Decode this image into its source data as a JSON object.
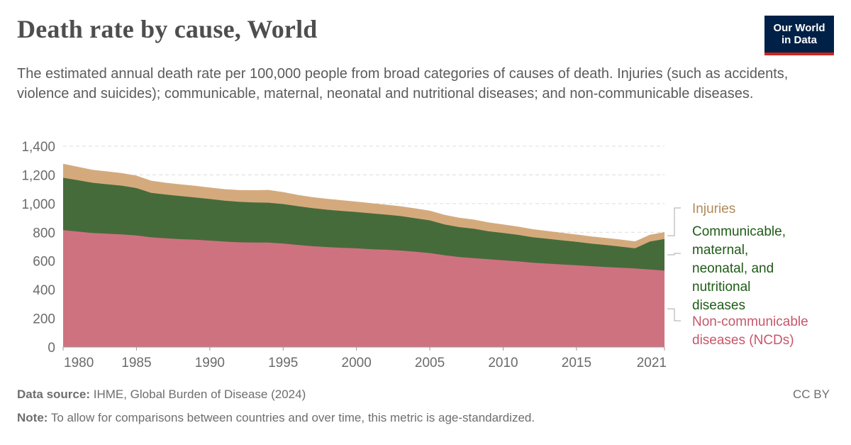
{
  "header": {
    "title": "Death rate by cause, World",
    "subtitle": "The estimated annual death rate per 100,000 people from broad categories of causes of death. Injuries (such as accidents, violence and suicides); communicable, maternal, neonatal and nutritional diseases; and non-communicable diseases.",
    "logo_line1": "Our World",
    "logo_line2": "in Data",
    "logo_color": "#002147",
    "logo_accent": "#ce261e"
  },
  "footer": {
    "source_label": "Data source:",
    "source_text": "IHME, Global Burden of Disease (2024)",
    "note_label": "Note:",
    "note_text": "To allow for comparisons between countries and over time, this metric is age-standardized.",
    "license": "CC BY"
  },
  "chart_data": {
    "type": "area",
    "stacked": true,
    "x": [
      1980,
      1981,
      1982,
      1983,
      1984,
      1985,
      1986,
      1987,
      1988,
      1989,
      1990,
      1991,
      1992,
      1993,
      1994,
      1995,
      1996,
      1997,
      1998,
      1999,
      2000,
      2001,
      2002,
      2003,
      2004,
      2005,
      2006,
      2007,
      2008,
      2009,
      2010,
      2011,
      2012,
      2013,
      2014,
      2015,
      2016,
      2017,
      2018,
      2019,
      2020,
      2021
    ],
    "x_tick_labels": [
      "1980",
      "1985",
      "1990",
      "1995",
      "2000",
      "2005",
      "2010",
      "2015",
      "2021"
    ],
    "x_ticks": [
      1980,
      1985,
      1990,
      1995,
      2000,
      2005,
      2010,
      2015,
      2021
    ],
    "y_ticks": [
      0,
      200,
      400,
      600,
      800,
      1000,
      1200,
      1400
    ],
    "y_tick_labels": [
      "0",
      "200",
      "400",
      "600",
      "800",
      "1,000",
      "1,200",
      "1,400"
    ],
    "ylim": [
      0,
      1400
    ],
    "grid": true,
    "legend_position": "right",
    "series": [
      {
        "name": "Non-communicable diseases (NCDs)",
        "color": "#cf7280",
        "label_color": "#c7566b",
        "values": [
          815,
          805,
          795,
          790,
          785,
          778,
          765,
          758,
          752,
          748,
          742,
          735,
          730,
          728,
          728,
          722,
          712,
          703,
          697,
          692,
          688,
          682,
          678,
          673,
          665,
          655,
          640,
          628,
          620,
          612,
          605,
          597,
          588,
          582,
          576,
          570,
          564,
          558,
          553,
          548,
          540,
          533
        ]
      },
      {
        "name": "Communicable, maternal, neonatal, and nutritional diseases",
        "color": "#466b3b",
        "label_color": "#1f5b17",
        "values": [
          365,
          358,
          350,
          345,
          340,
          330,
          310,
          305,
          300,
          295,
          290,
          285,
          282,
          280,
          278,
          275,
          270,
          265,
          260,
          257,
          253,
          250,
          245,
          240,
          233,
          228,
          215,
          208,
          205,
          195,
          190,
          185,
          178,
          173,
          168,
          163,
          157,
          153,
          147,
          140,
          195,
          220
        ]
      },
      {
        "name": "Injuries",
        "color": "#d4aa7d",
        "label_color": "#b0895a",
        "values": [
          95,
          91,
          88,
          87,
          85,
          84,
          82,
          80,
          80,
          79,
          77,
          78,
          80,
          83,
          87,
          81,
          76,
          75,
          74,
          72,
          70,
          69,
          67,
          66,
          66,
          65,
          64,
          63,
          61,
          59,
          57,
          55,
          53,
          52,
          50,
          49,
          48,
          47,
          47,
          46,
          45,
          46
        ]
      }
    ],
    "legend_labels": [
      {
        "series": 2,
        "lines": [
          "Injuries"
        ]
      },
      {
        "series": 1,
        "lines": [
          "Communicable,",
          "maternal,",
          "neonatal, and",
          "nutritional",
          "diseases"
        ]
      },
      {
        "series": 0,
        "lines": [
          "Non-communicable",
          "diseases (NCDs)"
        ]
      }
    ]
  }
}
